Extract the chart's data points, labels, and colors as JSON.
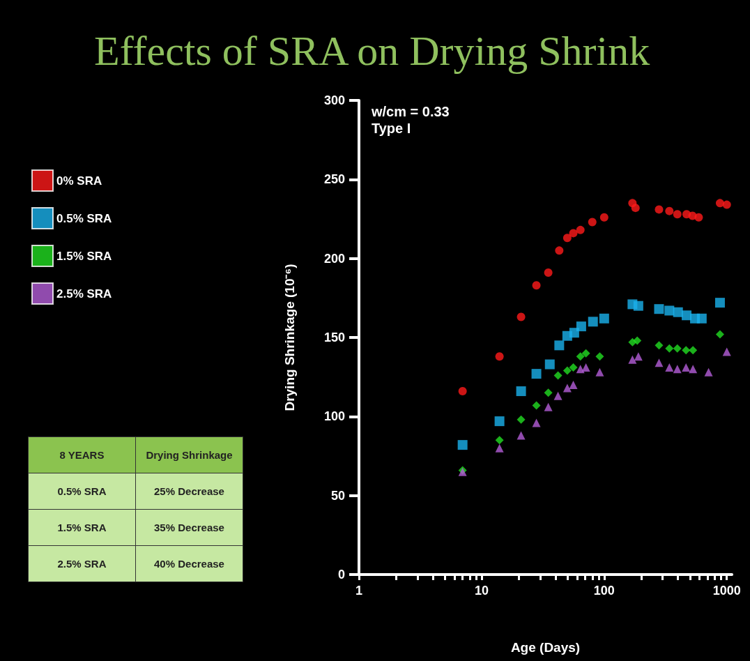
{
  "chart_data": {
    "type": "scatter",
    "title": "Effects of SRA on Drying Shrink",
    "xlabel": "Age (Days)",
    "ylabel": "Drying Shrinkage (10⁻⁶)",
    "annotations": [
      "w/cm = 0.33",
      "Type I",
      "8 YEARS",
      "Drying Shrinkage",
      "0.5% SRA",
      "25% Decrease",
      "1.5% SRA",
      "35% Decrease",
      "2.5% SRA",
      "40% Decrease"
    ],
    "log": "x",
    "xlim": [
      1,
      1100
    ],
    "ylim": [
      0,
      300
    ],
    "xticks": [
      1,
      {
        "value": 2,
        "label": null
      },
      {
        "value": 3,
        "label": null
      },
      {
        "value": 4,
        "label": null
      },
      {
        "value": 5,
        "label": null
      },
      {
        "value": 6,
        "label": null
      },
      {
        "value": 7,
        "label": null
      },
      {
        "value": 8,
        "label": null
      },
      {
        "value": 9,
        "label": null
      },
      10,
      {
        "value": 20,
        "label": null
      },
      {
        "value": 30,
        "label": null
      },
      {
        "value": 40,
        "label": null
      },
      {
        "value": 50,
        "label": null
      },
      {
        "value": 60,
        "label": null
      },
      {
        "value": 70,
        "label": null
      },
      {
        "value": 80,
        "label": null
      },
      {
        "value": 90,
        "label": null
      },
      100,
      {
        "value": 200,
        "label": null
      },
      {
        "value": 300,
        "label": null
      },
      {
        "value": 400,
        "label": null
      },
      {
        "value": 500,
        "label": null
      },
      {
        "value": 600,
        "label": null
      },
      {
        "value": 700,
        "label": null
      },
      {
        "value": 800,
        "label": null
      },
      {
        "value": 900,
        "label": null
      },
      1000
    ],
    "yticks": [
      0,
      50,
      100,
      150,
      200,
      250,
      300
    ],
    "grid": false,
    "legend": "left",
    "series": [
      {
        "name": "0% SRA",
        "color": "#ff1a1a",
        "marker": "circle",
        "x": [
          7,
          14,
          21,
          28,
          35,
          43,
          50,
          56,
          64,
          80,
          100,
          170,
          180,
          280,
          340,
          395,
          470,
          525,
          590,
          880,
          1000
        ],
        "values": [
          116,
          138,
          163,
          183,
          191,
          205,
          213,
          216,
          218,
          223,
          226,
          235,
          232,
          231,
          230,
          228,
          228,
          227,
          226,
          235,
          234
        ]
      },
      {
        "name": "0.5% SRA",
        "color": "#1ab2ec",
        "marker": "square",
        "x": [
          7,
          14,
          21,
          28,
          36,
          43,
          50,
          57,
          65,
          81,
          100,
          170,
          190,
          280,
          340,
          400,
          470,
          550,
          625,
          880
        ],
        "values": [
          82,
          97,
          116,
          127,
          133,
          145,
          151,
          153,
          157,
          160,
          162,
          171,
          170,
          168,
          167,
          166,
          164,
          162,
          162,
          172
        ]
      },
      {
        "name": "1.5% SRA",
        "color": "#22dd22",
        "marker": "diamond",
        "x": [
          7,
          14,
          21,
          28,
          35,
          42,
          50,
          56,
          64,
          71,
          92,
          170,
          186,
          280,
          340,
          395,
          465,
          530,
          880
        ],
        "values": [
          66,
          85,
          98,
          107,
          115,
          126,
          129,
          131,
          138,
          140,
          138,
          147,
          148,
          145,
          143,
          143,
          142,
          142,
          152
        ]
      },
      {
        "name": "2.5% SRA",
        "color": "#b45ed8",
        "marker": "triangle",
        "x": [
          7,
          14,
          21,
          28,
          35,
          42,
          50,
          56,
          64,
          71,
          92,
          170,
          190,
          280,
          340,
          395,
          465,
          530,
          710,
          1000
        ],
        "values": [
          65,
          80,
          88,
          96,
          106,
          113,
          118,
          120,
          130,
          131,
          128,
          136,
          138,
          134,
          131,
          130,
          131,
          130,
          128,
          141
        ]
      }
    ]
  }
}
